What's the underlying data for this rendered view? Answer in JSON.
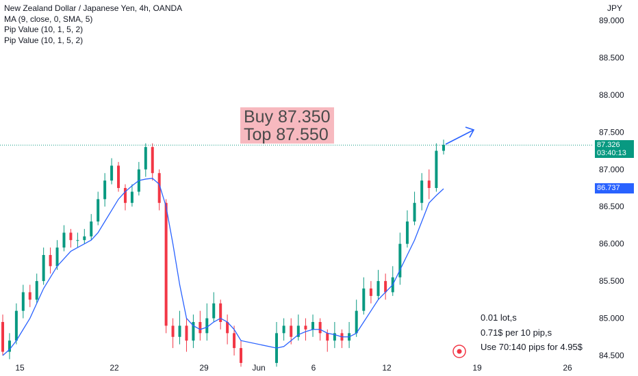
{
  "legend": {
    "title": "New Zealand Dollar / Japanese Yen, 4h, OANDA",
    "ma": "MA (9, close, 0, SMA, 5)",
    "pip1": "Pip Value (10, 1, 5, 2)",
    "pip2": "Pip Value (10, 1, 5, 2)"
  },
  "callout": {
    "line1": "Buy 87.350",
    "line2": "Top 87.550"
  },
  "notes": {
    "lot": "0.01 lot,s",
    "per_pip": "0.71$ per 10 pip,s",
    "use": "Use 70:140 pips for 4.95$"
  },
  "price_tags": {
    "last_price": "87.326",
    "countdown": "03:40:13",
    "ma_value": "86.737"
  },
  "icons": {
    "target": "target-icon",
    "arrow": "arrow-up-right-icon"
  },
  "colors": {
    "up": "#089981",
    "down": "#f23645",
    "ma": "#2962ff",
    "last": "#089981",
    "ma_tag": "#2962ff"
  },
  "chart_data": {
    "type": "candlestick",
    "title": "New Zealand Dollar / Japanese Yen, 4h, OANDA",
    "currency": "JPY",
    "y_ticks": [
      "89.000",
      "88.500",
      "88.000",
      "87.500",
      "87.000",
      "86.500",
      "86.000",
      "85.500",
      "85.000",
      "84.500"
    ],
    "ylim": [
      84.4,
      89.1
    ],
    "x_ticks": [
      "15",
      "22",
      "29",
      "Jun",
      "6",
      "12",
      "19",
      "26"
    ],
    "last_price": 87.326,
    "ma_last": 86.737,
    "candles": [
      [
        84.95,
        84.55,
        85.05,
        84.5
      ],
      [
        84.55,
        84.7,
        84.8,
        84.45
      ],
      [
        84.7,
        85.1,
        85.2,
        84.65
      ],
      [
        85.1,
        85.35,
        85.45,
        85.0
      ],
      [
        85.35,
        85.25,
        85.45,
        85.15
      ],
      [
        85.25,
        85.5,
        85.6,
        85.2
      ],
      [
        85.5,
        85.85,
        85.95,
        85.45
      ],
      [
        85.85,
        85.7,
        85.95,
        85.6
      ],
      [
        85.7,
        85.95,
        86.05,
        85.65
      ],
      [
        85.95,
        86.15,
        86.25,
        85.9
      ],
      [
        86.15,
        86.05,
        86.2,
        85.95
      ],
      [
        86.05,
        86.05,
        86.15,
        85.95
      ],
      [
        86.05,
        86.1,
        86.2,
        86.0
      ],
      [
        86.1,
        86.3,
        86.4,
        86.05
      ],
      [
        86.3,
        86.6,
        86.7,
        86.25
      ],
      [
        86.6,
        86.85,
        86.95,
        86.5
      ],
      [
        86.85,
        87.05,
        87.15,
        86.8
      ],
      [
        87.05,
        86.75,
        87.1,
        86.7
      ],
      [
        86.75,
        86.55,
        86.8,
        86.45
      ],
      [
        86.55,
        86.7,
        86.8,
        86.5
      ],
      [
        86.7,
        87.0,
        87.1,
        86.65
      ],
      [
        87.0,
        87.3,
        87.35,
        86.9
      ],
      [
        87.3,
        86.95,
        87.35,
        86.85
      ],
      [
        86.95,
        86.55,
        87.0,
        86.45
      ],
      [
        86.55,
        84.9,
        86.6,
        84.8
      ],
      [
        84.9,
        84.75,
        85.0,
        84.6
      ],
      [
        84.75,
        84.9,
        85.1,
        84.65
      ],
      [
        84.9,
        84.7,
        85.0,
        84.55
      ],
      [
        84.7,
        84.95,
        85.05,
        84.6
      ],
      [
        84.95,
        84.8,
        85.1,
        84.7
      ],
      [
        84.8,
        85.0,
        85.2,
        84.7
      ],
      [
        85.0,
        85.2,
        85.35,
        84.95
      ],
      [
        85.2,
        84.95,
        85.25,
        84.85
      ],
      [
        84.95,
        84.8,
        85.05,
        84.65
      ],
      [
        84.8,
        84.6,
        84.9,
        84.5
      ],
      [
        84.6,
        84.4,
        84.7,
        84.35
      ],
      [
        84.4,
        84.8,
        84.95,
        84.35
      ],
      [
        84.8,
        84.9,
        85.0,
        84.7
      ],
      [
        84.9,
        84.75,
        85.0,
        84.65
      ],
      [
        84.75,
        84.9,
        85.05,
        84.7
      ],
      [
        84.9,
        84.85,
        85.0,
        84.7
      ],
      [
        84.85,
        84.95,
        85.05,
        84.75
      ],
      [
        84.95,
        84.8,
        85.0,
        84.7
      ],
      [
        84.8,
        84.7,
        84.85,
        84.55
      ],
      [
        84.7,
        84.8,
        84.95,
        84.6
      ],
      [
        84.8,
        84.7,
        84.85,
        84.6
      ],
      [
        84.7,
        84.8,
        84.95,
        84.6
      ],
      [
        84.8,
        85.1,
        85.25,
        84.75
      ],
      [
        85.1,
        85.4,
        85.55,
        85.05
      ],
      [
        85.4,
        85.3,
        85.5,
        85.2
      ],
      [
        85.3,
        85.5,
        85.65,
        85.25
      ],
      [
        85.5,
        85.35,
        85.6,
        85.25
      ],
      [
        85.35,
        85.55,
        85.7,
        85.3
      ],
      [
        85.55,
        86.0,
        86.15,
        85.45
      ],
      [
        86.0,
        86.3,
        86.45,
        85.95
      ],
      [
        86.3,
        86.55,
        86.7,
        86.25
      ],
      [
        86.55,
        86.85,
        86.95,
        86.45
      ],
      [
        86.85,
        86.75,
        87.0,
        86.6
      ],
      [
        86.75,
        87.25,
        87.35,
        86.7
      ],
      [
        87.25,
        87.33,
        87.4,
        87.2
      ]
    ],
    "ma_series": [
      84.5,
      84.58,
      84.7,
      84.85,
      85.0,
      85.2,
      85.4,
      85.55,
      85.7,
      85.8,
      85.9,
      85.95,
      86.0,
      86.05,
      86.15,
      86.3,
      86.45,
      86.6,
      86.7,
      86.78,
      86.85,
      86.87,
      86.88,
      86.8,
      86.5,
      86.0,
      85.45,
      85.0,
      84.9,
      84.85,
      84.88,
      84.95,
      85.0,
      84.95,
      84.85,
      84.7,
      84.6,
      84.62,
      84.7,
      84.78,
      84.82,
      84.85,
      84.85,
      84.8,
      84.78,
      84.75,
      84.75,
      84.8,
      84.95,
      85.1,
      85.25,
      85.35,
      85.45,
      85.65,
      85.85,
      86.05,
      86.3,
      86.55,
      86.65,
      86.74
    ]
  }
}
